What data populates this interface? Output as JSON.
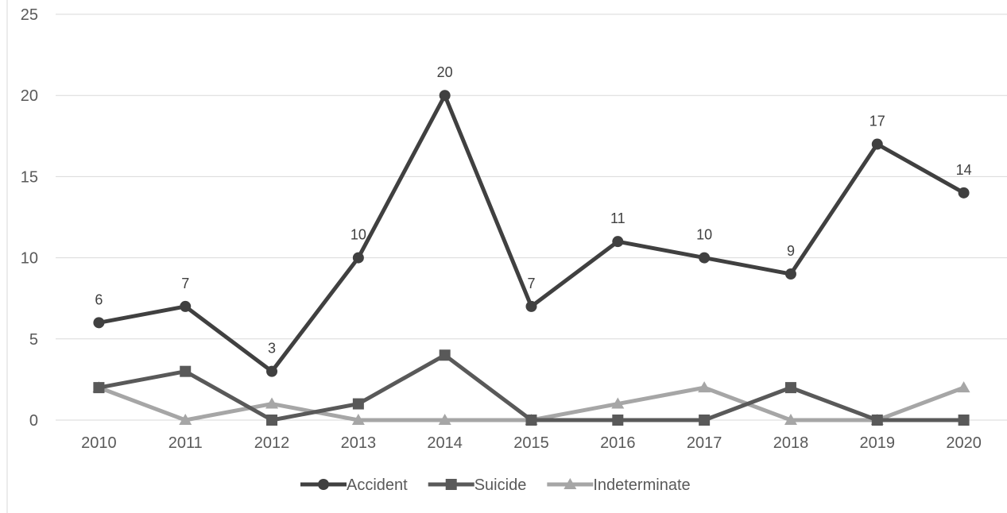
{
  "chart_data": {
    "type": "line",
    "title": "",
    "xlabel": "",
    "ylabel": "",
    "categories": [
      "2010",
      "2011",
      "2012",
      "2013",
      "2014",
      "2015",
      "2016",
      "2017",
      "2018",
      "2019",
      "2020"
    ],
    "ylim": [
      0,
      25
    ],
    "yticks": [
      0,
      5,
      10,
      15,
      20,
      25
    ],
    "grid": true,
    "legend_position": "bottom",
    "series": [
      {
        "name": "Accident",
        "values": [
          6,
          7,
          3,
          10,
          20,
          7,
          11,
          10,
          9,
          17,
          14
        ],
        "color": "#404040",
        "marker": "circle",
        "data_labels": true
      },
      {
        "name": "Suicide",
        "values": [
          2,
          3,
          0,
          1,
          4,
          0,
          0,
          0,
          2,
          0,
          0
        ],
        "color": "#595959",
        "marker": "square",
        "data_labels": false
      },
      {
        "name": "Indeterminate",
        "values": [
          2,
          0,
          1,
          0,
          0,
          0,
          1,
          2,
          0,
          0,
          2
        ],
        "color": "#a6a6a6",
        "marker": "triangle",
        "data_labels": false
      }
    ]
  }
}
